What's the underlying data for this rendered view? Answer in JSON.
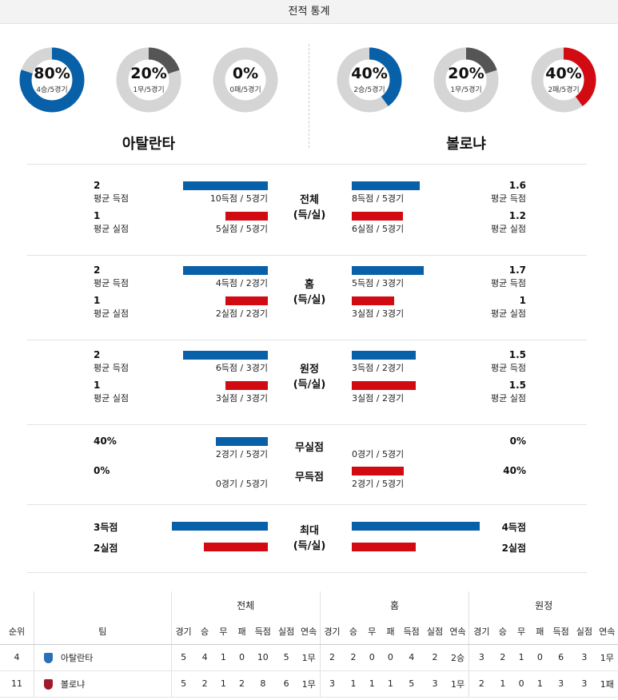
{
  "header": {
    "title": "전적 통계"
  },
  "teams": {
    "left": {
      "name": "아탈란타",
      "donuts": [
        {
          "pct": "80%",
          "record": "4승/5경기",
          "value": 0.8,
          "color": "#0760a8"
        },
        {
          "pct": "20%",
          "record": "1무/5경기",
          "value": 0.2,
          "color": "#555555"
        },
        {
          "pct": "0%",
          "record": "0패/5경기",
          "value": 0,
          "color": "#d20a12"
        }
      ]
    },
    "right": {
      "name": "볼로냐",
      "donuts": [
        {
          "pct": "40%",
          "record": "2승/5경기",
          "value": 0.4,
          "color": "#0760a8"
        },
        {
          "pct": "20%",
          "record": "1무/5경기",
          "value": 0.2,
          "color": "#555555"
        },
        {
          "pct": "40%",
          "record": "2패/5경기",
          "value": 0.4,
          "color": "#d20a12"
        }
      ]
    }
  },
  "sections": [
    {
      "label1": "전체",
      "label2": "(득/실)",
      "left": {
        "scored": {
          "avg": "2",
          "label": "평균 득점",
          "caption": "10득점 / 5경기",
          "value": 2
        },
        "conceded": {
          "avg": "1",
          "label": "평균 실점",
          "caption": "5실점 / 5경기",
          "value": 1
        }
      },
      "right": {
        "scored": {
          "avg": "1.6",
          "label": "평균 득점",
          "caption": "8득점 / 5경기",
          "value": 1.6
        },
        "conceded": {
          "avg": "1.2",
          "label": "평균 실점",
          "caption": "6실점 / 5경기",
          "value": 1.2
        }
      }
    },
    {
      "label1": "홈",
      "label2": "(득/실)",
      "left": {
        "scored": {
          "avg": "2",
          "label": "평균 득점",
          "caption": "4득점 / 2경기",
          "value": 2
        },
        "conceded": {
          "avg": "1",
          "label": "평균 실점",
          "caption": "2실점 / 2경기",
          "value": 1
        }
      },
      "right": {
        "scored": {
          "avg": "1.7",
          "label": "평균 득점",
          "caption": "5득점 / 3경기",
          "value": 1.7
        },
        "conceded": {
          "avg": "1",
          "label": "평균 실점",
          "caption": "3실점 / 3경기",
          "value": 1
        }
      }
    },
    {
      "label1": "원정",
      "label2": "(득/실)",
      "left": {
        "scored": {
          "avg": "2",
          "label": "평균 득점",
          "caption": "6득점 / 3경기",
          "value": 2
        },
        "conceded": {
          "avg": "1",
          "label": "평균 실점",
          "caption": "3실점 / 3경기",
          "value": 1
        }
      },
      "right": {
        "scored": {
          "avg": "1.5",
          "label": "평균 득점",
          "caption": "3득점 / 2경기",
          "value": 1.5
        },
        "conceded": {
          "avg": "1.5",
          "label": "평균 실점",
          "caption": "3실점 / 2경기",
          "value": 1.5
        }
      }
    }
  ],
  "clean": {
    "cs": {
      "label": "무실점",
      "left": {
        "pct": "40%",
        "caption": "2경기 / 5경기",
        "value": 0.4
      },
      "right": {
        "pct": "0%",
        "caption": "0경기 / 5경기",
        "value": 0
      }
    },
    "fts": {
      "label": "무득점",
      "left": {
        "pct": "0%",
        "caption": "0경기 / 5경기",
        "value": 0
      },
      "right": {
        "pct": "40%",
        "caption": "2경기 / 5경기",
        "value": 0.4
      }
    }
  },
  "max": {
    "label1": "최대",
    "label2": "(득/실)",
    "left": {
      "scored": "3득점",
      "conceded": "2실점",
      "scored_value": 3,
      "conceded_value": 2
    },
    "right": {
      "scored": "4득점",
      "conceded": "2실점",
      "scored_value": 4,
      "conceded_value": 2
    }
  },
  "standings": {
    "groups": [
      "전체",
      "홈",
      "원정"
    ],
    "cols": [
      "순위",
      "팀",
      "경기",
      "승",
      "무",
      "패",
      "득점",
      "실점",
      "연속",
      "경기",
      "승",
      "무",
      "패",
      "득점",
      "실점",
      "연속",
      "경기",
      "승",
      "무",
      "패",
      "득점",
      "실점",
      "연속"
    ],
    "rows": [
      {
        "rank": "4",
        "team": "아탈란타",
        "crest": "#2a6fb8",
        "vals": [
          "5",
          "4",
          "1",
          "0",
          "10",
          "5",
          "1무",
          "2",
          "2",
          "0",
          "0",
          "4",
          "2",
          "2승",
          "3",
          "2",
          "1",
          "0",
          "6",
          "3",
          "1무"
        ]
      },
      {
        "rank": "11",
        "team": "볼로냐",
        "crest": "#a01a2a",
        "vals": [
          "5",
          "2",
          "1",
          "2",
          "8",
          "6",
          "1무",
          "3",
          "1",
          "1",
          "1",
          "5",
          "3",
          "1무",
          "2",
          "1",
          "0",
          "1",
          "3",
          "3",
          "1패"
        ]
      }
    ]
  }
}
